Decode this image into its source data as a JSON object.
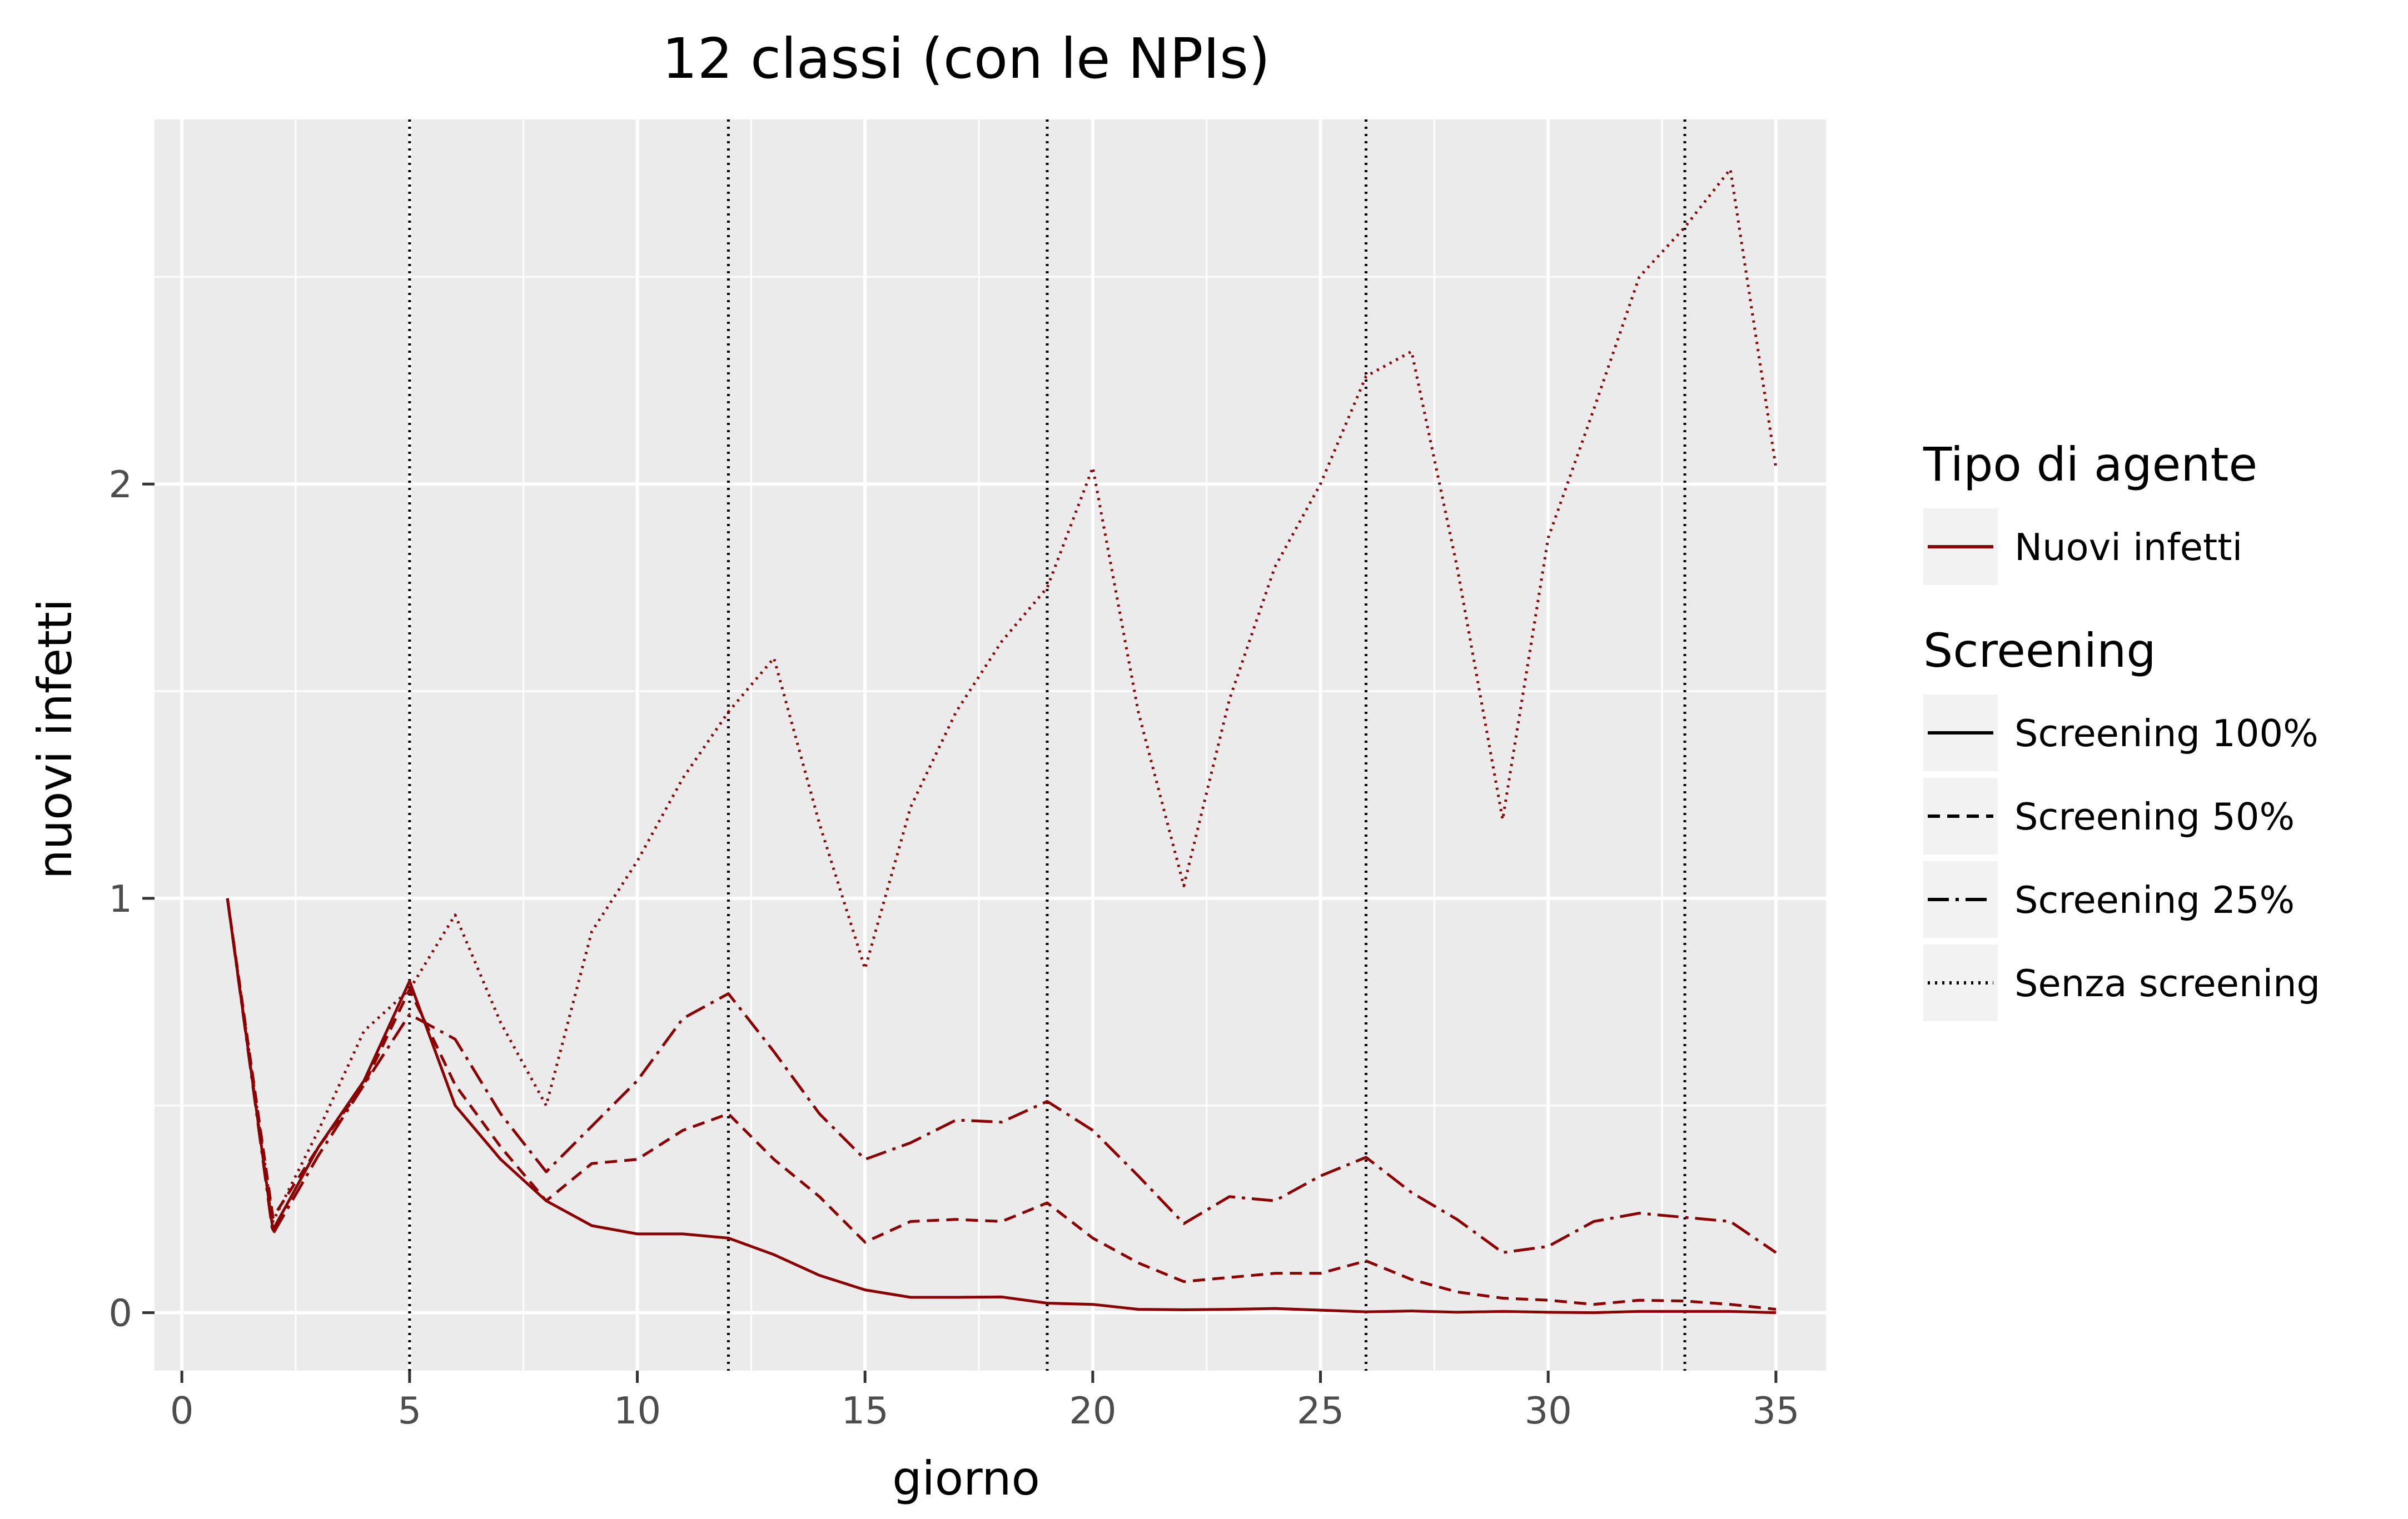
{
  "chart_data": {
    "type": "line",
    "title": "12 classi (con le NPIs)",
    "xlabel": "giorno",
    "ylabel": "nuovi infetti",
    "xlim": [
      -0.6,
      36.1
    ],
    "ylim": [
      -0.14,
      2.88
    ],
    "x_ticks": [
      0,
      5,
      10,
      15,
      20,
      25,
      30,
      35
    ],
    "x_tick_labels": [
      "0",
      "5",
      "10",
      "15",
      "20",
      "25",
      "30",
      "35"
    ],
    "y_ticks": [
      0,
      1,
      2
    ],
    "y_tick_labels": [
      "0",
      "1",
      "2"
    ],
    "vlines": [
      5,
      12,
      19,
      26,
      33
    ],
    "grid": true,
    "line_color": "#8b0000",
    "panel_background": "#ebebeb",
    "x": [
      1,
      2,
      3,
      4,
      5,
      6,
      7,
      8,
      9,
      10,
      11,
      12,
      13,
      14,
      15,
      16,
      17,
      18,
      19,
      20,
      21,
      22,
      23,
      24,
      25,
      26,
      27,
      28,
      29,
      30,
      31,
      32,
      33,
      34,
      35
    ],
    "series": [
      {
        "name": "Screening 100%",
        "linetype": "solid",
        "values": [
          1.0,
          0.2,
          0.4,
          0.56,
          0.8,
          0.5,
          0.37,
          0.27,
          0.21,
          0.19,
          0.19,
          0.18,
          0.14,
          0.09,
          0.055,
          0.037,
          0.037,
          0.038,
          0.023,
          0.02,
          0.008,
          0.007,
          0.008,
          0.01,
          0.006,
          0.002,
          0.004,
          0.001,
          0.003,
          0.001,
          0.0,
          0.003,
          0.003,
          0.003,
          0.0
        ]
      },
      {
        "name": "Screening 50%",
        "linetype": "dashed",
        "values": [
          1.0,
          0.23,
          0.4,
          0.55,
          0.78,
          0.55,
          0.4,
          0.27,
          0.36,
          0.37,
          0.44,
          0.48,
          0.37,
          0.28,
          0.17,
          0.22,
          0.225,
          0.22,
          0.265,
          0.18,
          0.12,
          0.075,
          0.085,
          0.095,
          0.095,
          0.125,
          0.08,
          0.05,
          0.035,
          0.03,
          0.02,
          0.03,
          0.028,
          0.02,
          0.008
        ]
      },
      {
        "name": "Screening 25%",
        "linetype": "dashdot",
        "values": [
          1.0,
          0.19,
          0.38,
          0.55,
          0.72,
          0.66,
          0.48,
          0.34,
          0.45,
          0.56,
          0.71,
          0.77,
          0.63,
          0.48,
          0.37,
          0.41,
          0.465,
          0.46,
          0.51,
          0.44,
          0.33,
          0.215,
          0.28,
          0.27,
          0.33,
          0.375,
          0.29,
          0.225,
          0.145,
          0.16,
          0.22,
          0.24,
          0.23,
          0.22,
          0.145
        ]
      },
      {
        "name": "Senza screening",
        "linetype": "dotted",
        "values": [
          1.0,
          0.22,
          0.44,
          0.68,
          0.78,
          0.96,
          0.7,
          0.5,
          0.92,
          1.09,
          1.29,
          1.45,
          1.58,
          1.18,
          0.83,
          1.22,
          1.45,
          1.62,
          1.75,
          2.04,
          1.45,
          1.03,
          1.48,
          1.8,
          2.0,
          2.26,
          2.32,
          1.8,
          1.19,
          1.87,
          2.18,
          2.5,
          2.62,
          2.76,
          2.04
        ]
      }
    ],
    "legend": {
      "placement": "right",
      "groups": [
        {
          "title": "Tipo di agente",
          "items": [
            {
              "label": "Nuovi infetti",
              "linetype": "solid",
              "color": "#8b0000"
            }
          ]
        },
        {
          "title": "Screening",
          "items": [
            {
              "label": "Screening 100%",
              "linetype": "solid",
              "color": "#000000"
            },
            {
              "label": "Screening 50%",
              "linetype": "dashed",
              "color": "#000000"
            },
            {
              "label": "Screening 25%",
              "linetype": "dashdot",
              "color": "#000000"
            },
            {
              "label": "Senza screening",
              "linetype": "dotted",
              "color": "#000000"
            }
          ]
        }
      ]
    }
  }
}
